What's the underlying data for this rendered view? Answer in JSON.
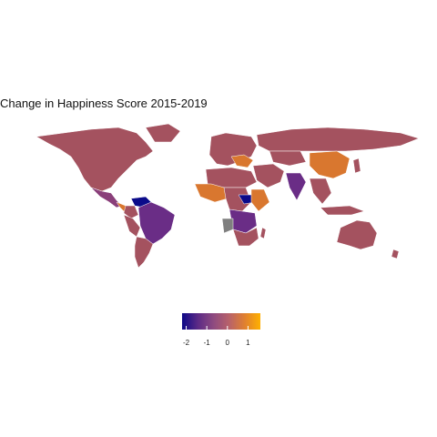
{
  "title": "Change in Happiness Score 2015-2019",
  "legend": {
    "ticks": [
      "-2",
      "-1",
      "0",
      "1"
    ],
    "tick_values": [
      -2,
      -1,
      0,
      1
    ],
    "min": -2.2,
    "max": 1.6,
    "colors": [
      "#0d0887",
      "#5b2a86",
      "#8e4a80",
      "#b8626a",
      "#e08030",
      "#ffb000"
    ]
  },
  "map_colors": {
    "default": "#a4525f",
    "very_negative": "#0b0b8a",
    "negative": "#6a2d86",
    "slightly_negative": "#8a3f7a",
    "positive": "#d9772f",
    "missing": "#7f7f7f",
    "border": "#ffffff"
  }
}
